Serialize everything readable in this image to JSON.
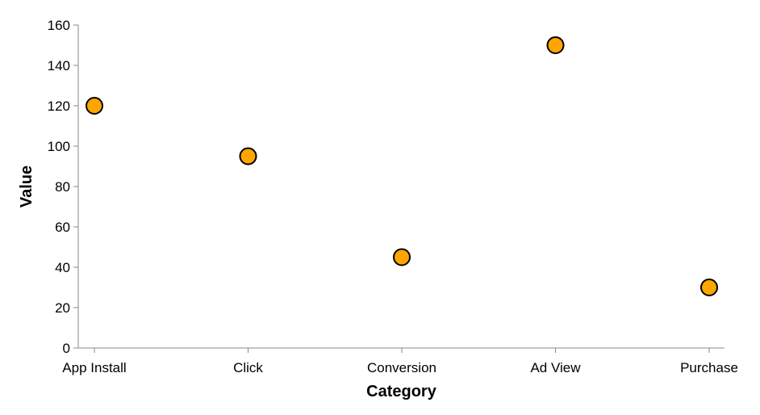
{
  "chart_data": {
    "type": "scatter",
    "categories": [
      "App Install",
      "Click",
      "Conversion",
      "Ad View",
      "Purchase"
    ],
    "values": [
      120,
      95,
      45,
      150,
      30
    ],
    "xlabel": "Category",
    "ylabel": "Value",
    "ylim": [
      0,
      160
    ],
    "yticks": [
      0,
      20,
      40,
      60,
      80,
      100,
      120,
      140,
      160
    ],
    "grid": false,
    "colors": {
      "point_fill": "#FFA500",
      "point_stroke": "#000000",
      "axis": "#888888"
    }
  }
}
